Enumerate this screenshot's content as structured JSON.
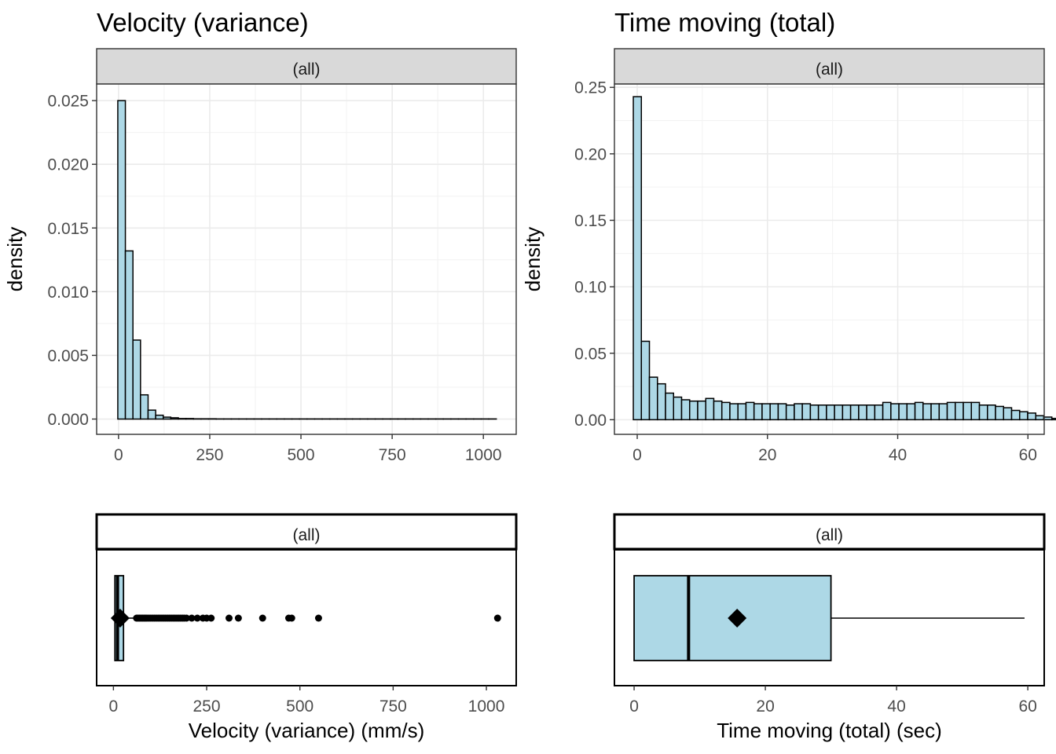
{
  "panels": {
    "velocity": {
      "title": "Velocity (variance)"
    },
    "time": {
      "title": "Time moving (total)"
    }
  },
  "chart_data": [
    {
      "type": "bar",
      "subtype": "histogram",
      "title": "Velocity (variance)",
      "facet": "(all)",
      "xlabel": "",
      "ylabel": "density",
      "xlim": [
        -60,
        1090
      ],
      "ylim": [
        -0.0012,
        0.0263
      ],
      "xticks": [
        0,
        250,
        500,
        750,
        1000
      ],
      "xtick_labels": [
        "0",
        "250",
        "500",
        "750",
        "1000"
      ],
      "yticks": [
        0,
        0.005,
        0.01,
        0.015,
        0.02,
        0.025
      ],
      "ytick_labels": [
        "0.000",
        "0.005",
        "0.010",
        "0.015",
        "0.020",
        "0.025"
      ],
      "bin_width": 20.75,
      "bin_start": -2,
      "densities": [
        0.025,
        0.0132,
        0.0062,
        0.0019,
        0.0007,
        0.0003,
        0.00015,
        0.0001,
        4e-05,
        4e-05,
        2e-05,
        2e-05,
        2e-05,
        1e-05,
        1e-05,
        1e-05,
        1e-05,
        1e-05,
        1e-05,
        1e-05,
        1e-05,
        1e-05,
        1e-05,
        1e-05,
        1e-05,
        1e-05,
        1e-05,
        1e-05,
        1e-05,
        1e-05,
        1e-05,
        1e-05,
        1e-05,
        1e-05,
        1e-05,
        1e-05,
        1e-05,
        1e-05,
        1e-05,
        1e-05,
        1e-05,
        1e-05,
        1e-05,
        1e-05,
        1e-05,
        1e-05,
        1e-05,
        1e-05,
        1e-05,
        1e-05
      ],
      "fill": "#add8e6",
      "grid": true
    },
    {
      "type": "bar",
      "subtype": "histogram",
      "title": "Time moving (total)",
      "facet": "(all)",
      "xlabel": "",
      "ylabel": "density",
      "xlim": [
        -3.5,
        62.5
      ],
      "ylim": [
        -0.011,
        0.2525
      ],
      "xticks": [
        0,
        20,
        40,
        60
      ],
      "xtick_labels": [
        "0",
        "20",
        "40",
        "60"
      ],
      "yticks": [
        0,
        0.05,
        0.1,
        0.15,
        0.2,
        0.25
      ],
      "ytick_labels": [
        "0.00",
        "0.05",
        "0.10",
        "0.15",
        "0.20",
        "0.25"
      ],
      "bin_width": 1.236,
      "bin_start": -0.6,
      "densities": [
        0.243,
        0.059,
        0.032,
        0.027,
        0.02,
        0.017,
        0.015,
        0.014,
        0.014,
        0.016,
        0.014,
        0.013,
        0.012,
        0.012,
        0.013,
        0.012,
        0.012,
        0.012,
        0.012,
        0.011,
        0.012,
        0.012,
        0.011,
        0.011,
        0.011,
        0.011,
        0.011,
        0.011,
        0.011,
        0.011,
        0.011,
        0.013,
        0.012,
        0.012,
        0.012,
        0.013,
        0.012,
        0.012,
        0.012,
        0.013,
        0.013,
        0.013,
        0.013,
        0.011,
        0.011,
        0.01,
        0.009,
        0.007,
        0.006,
        0.005,
        0.003,
        0.002,
        0.001
      ],
      "fill": "#add8e6",
      "grid": true
    },
    {
      "type": "boxplot",
      "facet": "(all)",
      "xlabel": "Velocity (variance)  (mm/s)",
      "xlim": [
        -45,
        1080
      ],
      "xticks": [
        0,
        250,
        500,
        750,
        1000
      ],
      "xtick_labels": [
        "0",
        "250",
        "500",
        "750",
        "1000"
      ],
      "q1": 4,
      "median": 11,
      "q3": 27,
      "whisker_low": 0,
      "whisker_high": 60,
      "mean": 18,
      "outliers": [
        62,
        66,
        70,
        74,
        78,
        82,
        86,
        90,
        95,
        100,
        105,
        110,
        115,
        120,
        125,
        130,
        135,
        140,
        145,
        150,
        155,
        160,
        165,
        170,
        175,
        180,
        185,
        190,
        196,
        210,
        225,
        240,
        250,
        262,
        310,
        335,
        400,
        470,
        478,
        550,
        1030
      ],
      "fill": "#add8e6"
    },
    {
      "type": "boxplot",
      "facet": "(all)",
      "xlabel": "Time moving (total) (sec)",
      "xlim": [
        -3,
        62.5
      ],
      "xticks": [
        0,
        20,
        40,
        60
      ],
      "xtick_labels": [
        "0",
        "20",
        "40",
        "60"
      ],
      "q1": 0,
      "median": 8.3,
      "q3": 30,
      "whisker_low": 0,
      "whisker_high": 59.5,
      "mean": 15.7,
      "outliers": [],
      "fill": "#add8e6"
    }
  ]
}
